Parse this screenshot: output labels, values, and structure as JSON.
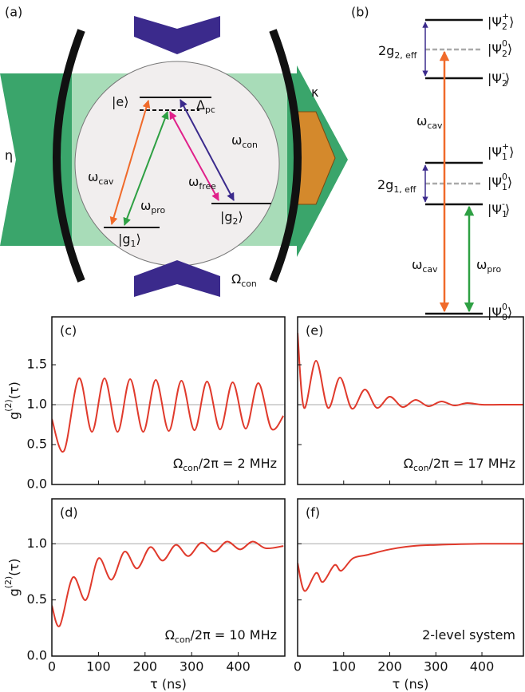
{
  "diagram_a": {
    "panel": "(a)",
    "labels": {
      "eta": [
        {
          "t": "η"
        }
      ],
      "kappa": [
        {
          "t": "κ"
        }
      ],
      "e": [
        {
          "t": "|e⟩"
        }
      ],
      "delta": [
        {
          "t": "Δ"
        },
        {
          "sub": "pc"
        }
      ],
      "wcav": [
        {
          "t": "ω"
        },
        {
          "sub": "cav"
        }
      ],
      "wpro": [
        {
          "t": "ω"
        },
        {
          "sub": "pro"
        }
      ],
      "wfree": [
        {
          "t": "ω"
        },
        {
          "sub": "free"
        }
      ],
      "wcon": [
        {
          "t": "ω"
        },
        {
          "sub": "con"
        }
      ],
      "g1": [
        {
          "t": "|g"
        },
        {
          "sub": "1"
        },
        {
          "t": "⟩"
        }
      ],
      "g2": [
        {
          "t": "|g"
        },
        {
          "sub": "2"
        },
        {
          "t": "⟩"
        }
      ],
      "ocon": [
        {
          "t": "Ω"
        },
        {
          "sub": "con"
        }
      ]
    }
  },
  "diagram_b": {
    "panel": "(b)",
    "labels": {
      "p2p": [
        {
          "t": "|Ψ"
        },
        {
          "sub": "2"
        },
        {
          "sup": "+"
        },
        {
          "t": "⟩"
        }
      ],
      "p20": [
        {
          "t": "|Ψ"
        },
        {
          "sub": "2"
        },
        {
          "sup": "0"
        },
        {
          "t": "⟩"
        }
      ],
      "p2m": [
        {
          "t": "|Ψ"
        },
        {
          "sub": "2"
        },
        {
          "sup": "-"
        },
        {
          "t": "⟩"
        }
      ],
      "p1p": [
        {
          "t": "|Ψ"
        },
        {
          "sub": "1"
        },
        {
          "sup": "+"
        },
        {
          "t": "⟩"
        }
      ],
      "p10": [
        {
          "t": "|Ψ"
        },
        {
          "sub": "1"
        },
        {
          "sup": "0"
        },
        {
          "t": "⟩"
        }
      ],
      "p1m": [
        {
          "t": "|Ψ"
        },
        {
          "sub": "1"
        },
        {
          "sup": "-"
        },
        {
          "t": "⟩"
        }
      ],
      "p00": [
        {
          "t": "|Ψ"
        },
        {
          "sub": "0"
        },
        {
          "sup": "0"
        },
        {
          "t": "⟩"
        }
      ],
      "g2eff": [
        {
          "t": "2g"
        },
        {
          "sub": "2, eff"
        }
      ],
      "g1eff": [
        {
          "t": "2g"
        },
        {
          "sub": "1, eff"
        }
      ],
      "wcav1": [
        {
          "t": "ω"
        },
        {
          "sub": "cav"
        }
      ],
      "wcav2": [
        {
          "t": "ω"
        },
        {
          "sub": "cav"
        }
      ],
      "wpro": [
        {
          "t": "ω"
        },
        {
          "sub": "pro"
        }
      ]
    }
  },
  "chart_data": [
    {
      "type": "line",
      "panel": "(c)",
      "ylabel": [
        {
          "t": "g"
        },
        {
          "sup": "(2)"
        },
        {
          "t": "(τ)"
        }
      ],
      "annotation": [
        {
          "t": "Ω"
        },
        {
          "sub": "con"
        },
        {
          "t": "/2π = 2 MHz"
        }
      ],
      "xlim": [
        0,
        500
      ],
      "ylim": [
        0,
        2.1
      ],
      "xticks": [
        0,
        100,
        200,
        300,
        400
      ],
      "yticks": [
        {
          "value": 0,
          "label": "0.0"
        },
        0.5,
        {
          "value": 1,
          "label": "1.0"
        },
        1.5
      ],
      "show_xtick_labels": false,
      "show_ytick_labels": true,
      "hline": 1,
      "color": "#e03a2c",
      "x": [
        0,
        26,
        58,
        86,
        113,
        141,
        168,
        196,
        223,
        251,
        278,
        306,
        333,
        361,
        388,
        416,
        443,
        471,
        497
      ],
      "values": [
        0.82,
        0.42,
        1.33,
        0.66,
        1.33,
        0.66,
        1.32,
        0.66,
        1.31,
        0.67,
        1.3,
        0.68,
        1.29,
        0.69,
        1.28,
        0.7,
        1.27,
        0.7,
        0.86
      ]
    },
    {
      "type": "line",
      "panel": "(e)",
      "annotation": [
        {
          "t": "Ω"
        },
        {
          "sub": "con"
        },
        {
          "t": "/2π = 17 MHz"
        }
      ],
      "xlim": [
        0,
        490
      ],
      "ylim": [
        0,
        2.1
      ],
      "xticks": [
        0,
        100,
        200,
        300,
        400
      ],
      "yticks": [
        0,
        0.5,
        1,
        1.5
      ],
      "show_xtick_labels": false,
      "show_ytick_labels": false,
      "hline": 1,
      "color": "#e03a2c",
      "x": [
        0,
        14,
        40,
        66,
        92,
        118,
        146,
        172,
        200,
        228,
        256,
        284,
        312,
        340,
        368,
        400,
        440,
        490
      ],
      "values": [
        1.9,
        0.96,
        1.55,
        0.96,
        1.34,
        0.95,
        1.19,
        0.96,
        1.1,
        0.97,
        1.06,
        0.98,
        1.04,
        0.99,
        1.02,
        1.0,
        1.0,
        1.0
      ]
    },
    {
      "type": "line",
      "panel": "(d)",
      "ylabel": [
        {
          "t": "g"
        },
        {
          "sup": "(2)"
        },
        {
          "t": "(τ)"
        }
      ],
      "xlabel": "τ (ns)",
      "annotation": [
        {
          "t": "Ω"
        },
        {
          "sub": "con"
        },
        {
          "t": "/2π = 10 MHz"
        }
      ],
      "xlim": [
        0,
        500
      ],
      "ylim": [
        0,
        1.4
      ],
      "xticks": [
        0,
        100,
        200,
        300,
        400
      ],
      "yticks": [
        {
          "value": 0,
          "label": "0.0"
        },
        0.5,
        {
          "value": 1,
          "label": "1.0"
        }
      ],
      "show_xtick_labels": true,
      "show_ytick_labels": true,
      "hline": 1,
      "color": "#e03a2c",
      "x": [
        0,
        17,
        45,
        73,
        100,
        128,
        156,
        183,
        211,
        238,
        266,
        293,
        321,
        349,
        376,
        404,
        431,
        459,
        497
      ],
      "values": [
        0.45,
        0.27,
        0.7,
        0.5,
        0.87,
        0.68,
        0.93,
        0.78,
        0.97,
        0.85,
        0.99,
        0.89,
        1.01,
        0.93,
        1.02,
        0.95,
        1.02,
        0.96,
        0.98
      ]
    },
    {
      "type": "line",
      "panel": "(f)",
      "xlabel": "τ (ns)",
      "annotation": [
        {
          "t": "2-level system"
        }
      ],
      "xlim": [
        0,
        490
      ],
      "ylim": [
        0,
        1.4
      ],
      "xticks": [
        0,
        100,
        200,
        300,
        400
      ],
      "yticks": [
        0,
        0.5,
        1
      ],
      "show_xtick_labels": true,
      "show_ytick_labels": false,
      "hline": 1,
      "color": "#e03a2c",
      "x": [
        0,
        15,
        40,
        55,
        80,
        95,
        120,
        150,
        200,
        250,
        300,
        400,
        490
      ],
      "values": [
        0.83,
        0.58,
        0.74,
        0.66,
        0.81,
        0.76,
        0.87,
        0.9,
        0.95,
        0.98,
        0.99,
        1.0,
        1.0
      ]
    }
  ]
}
